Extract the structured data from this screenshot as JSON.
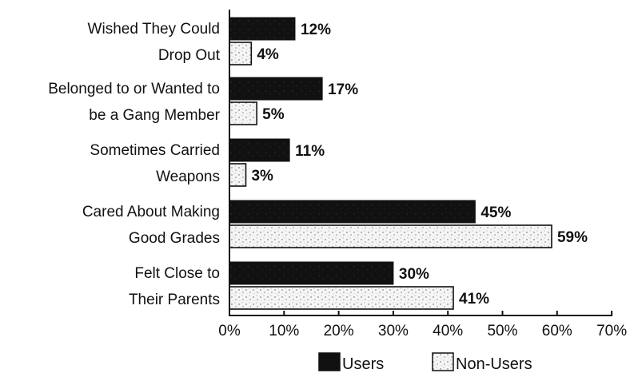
{
  "chart_data": {
    "type": "bar",
    "orientation": "horizontal",
    "categories": [
      [
        "Wished They Could",
        "Drop Out"
      ],
      [
        "Belonged to or Wanted to",
        "be a Gang Member"
      ],
      [
        "Sometimes Carried",
        "Weapons"
      ],
      [
        "Cared About Making",
        "Good Grades"
      ],
      [
        "Felt Close to",
        "Their Parents"
      ]
    ],
    "series": [
      {
        "name": "Users",
        "values": [
          12,
          17,
          11,
          45,
          30
        ],
        "labels": [
          "12%",
          "17%",
          "11%",
          "45%",
          "30%"
        ],
        "color": "#111111"
      },
      {
        "name": "Non-Users",
        "values": [
          4,
          5,
          3,
          59,
          41
        ],
        "labels": [
          "4%",
          "5%",
          "3%",
          "59%",
          "41%"
        ],
        "color": "#f4f4f4"
      }
    ],
    "xlim": [
      0,
      70
    ],
    "xticks": [
      0,
      10,
      20,
      30,
      40,
      50,
      60,
      70
    ],
    "xtick_labels": [
      "0%",
      "10%",
      "20%",
      "30%",
      "40%",
      "50%",
      "60%",
      "70%"
    ],
    "grid": false,
    "legend_position": "bottom"
  }
}
